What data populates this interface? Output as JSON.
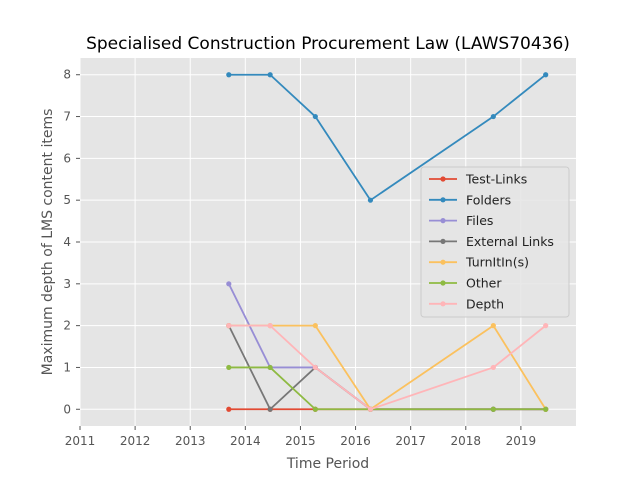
{
  "chart_data": {
    "type": "line",
    "title": "Specialised Construction Procurement Law (LAWS70436)",
    "xlabel": "Time Period",
    "ylabel": "Maximum depth of LMS content items",
    "xlim": [
      2011,
      2020
    ],
    "ylim": [
      -0.4,
      8.4
    ],
    "xticks": [
      2011,
      2012,
      2013,
      2014,
      2015,
      2016,
      2017,
      2018,
      2019
    ],
    "xtick_labels": [
      "2011",
      "2012",
      "2013",
      "2014",
      "2015",
      "2016",
      "2017",
      "2018",
      "2019"
    ],
    "yticks": [
      0,
      1,
      2,
      3,
      4,
      5,
      6,
      7,
      8
    ],
    "ytick_labels": [
      "0",
      "1",
      "2",
      "3",
      "4",
      "5",
      "6",
      "7",
      "8"
    ],
    "grid": true,
    "legend_position": "center-right",
    "x": [
      2013.7,
      2014.45,
      2015.27,
      2016.27,
      2018.5,
      2019.45
    ],
    "series": [
      {
        "name": "Test-Links",
        "color": "#E24A33",
        "values": [
          0,
          0,
          0,
          0,
          0,
          0
        ]
      },
      {
        "name": "Folders",
        "color": "#348ABD",
        "values": [
          8,
          8,
          7,
          5,
          7,
          8
        ]
      },
      {
        "name": "Files",
        "color": "#988ED5",
        "values": [
          3,
          1,
          1,
          0,
          0,
          0
        ]
      },
      {
        "name": "External Links",
        "color": "#777777",
        "values": [
          2,
          0,
          1,
          0,
          0,
          0
        ]
      },
      {
        "name": "TurnItIn(s)",
        "color": "#FBC15E",
        "values": [
          2,
          2,
          2,
          0,
          2,
          0
        ]
      },
      {
        "name": "Other",
        "color": "#8EBA42",
        "values": [
          1,
          1,
          0,
          0,
          0,
          0
        ]
      },
      {
        "name": "Depth",
        "color": "#FFB5B8",
        "values": [
          2,
          2,
          1,
          0,
          1,
          2
        ]
      }
    ]
  }
}
